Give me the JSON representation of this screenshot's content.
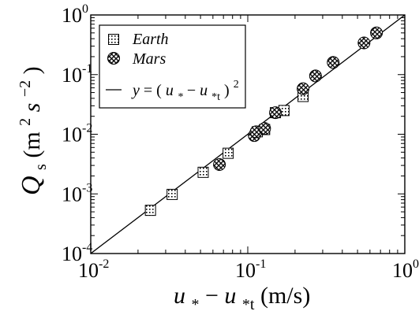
{
  "chart_data": {
    "type": "scatter",
    "xscale": "log",
    "yscale": "log",
    "xlim": [
      0.01,
      1
    ],
    "ylim": [
      0.0001,
      1
    ],
    "x_ticks": [
      {
        "value": 0.01,
        "base": "10",
        "exp": "-2"
      },
      {
        "value": 0.1,
        "base": "10",
        "exp": "-1"
      },
      {
        "value": 1,
        "base": "10",
        "exp": "0"
      }
    ],
    "y_ticks": [
      {
        "value": 0.0001,
        "base": "10",
        "exp": "-4"
      },
      {
        "value": 0.001,
        "base": "10",
        "exp": "-3"
      },
      {
        "value": 0.01,
        "base": "10",
        "exp": "-2"
      },
      {
        "value": 0.1,
        "base": "10",
        "exp": "-1"
      },
      {
        "value": 1,
        "base": "10",
        "exp": "0"
      }
    ],
    "xlabel": {
      "u1": "u",
      "sub1": "*",
      "dash": "−",
      "u2": "u",
      "sub2": "*t",
      "unit": " (m/s)"
    },
    "ylabel": {
      "Q": "Q",
      "sub": "s",
      "unit_open": " (m",
      "exp1": "2",
      "s": "s",
      "exp2": "−2",
      "unit_close": ")"
    },
    "legend": {
      "position": "top-left",
      "earth": "Earth",
      "mars": "Mars",
      "line": {
        "y": "y",
        "eq": " = (",
        "u1": "u",
        "sub1": "*",
        "dash": "−",
        "u2": "u",
        "sub2": "*t",
        "close": ")",
        "sup": "2"
      }
    },
    "series": [
      {
        "name": "Earth",
        "marker": "dotted-square",
        "points": [
          {
            "x": 0.024,
            "y": 0.00053
          },
          {
            "x": 0.033,
            "y": 0.00098
          },
          {
            "x": 0.052,
            "y": 0.0023
          },
          {
            "x": 0.075,
            "y": 0.0048
          },
          {
            "x": 0.115,
            "y": 0.011
          },
          {
            "x": 0.128,
            "y": 0.012
          },
          {
            "x": 0.15,
            "y": 0.023
          },
          {
            "x": 0.17,
            "y": 0.025
          },
          {
            "x": 0.225,
            "y": 0.043
          }
        ]
      },
      {
        "name": "Mars",
        "marker": "hatched-circle",
        "points": [
          {
            "x": 0.066,
            "y": 0.0031
          },
          {
            "x": 0.11,
            "y": 0.0095
          },
          {
            "x": 0.113,
            "y": 0.011
          },
          {
            "x": 0.128,
            "y": 0.0125
          },
          {
            "x": 0.15,
            "y": 0.023
          },
          {
            "x": 0.225,
            "y": 0.058
          },
          {
            "x": 0.27,
            "y": 0.095
          },
          {
            "x": 0.35,
            "y": 0.16
          },
          {
            "x": 0.55,
            "y": 0.34
          },
          {
            "x": 0.66,
            "y": 0.5
          }
        ]
      },
      {
        "name": "y = (u*−u*t)^2",
        "type": "line",
        "x": [
          0.01,
          1
        ],
        "y": [
          0.0001,
          1
        ]
      }
    ],
    "grid": false
  }
}
